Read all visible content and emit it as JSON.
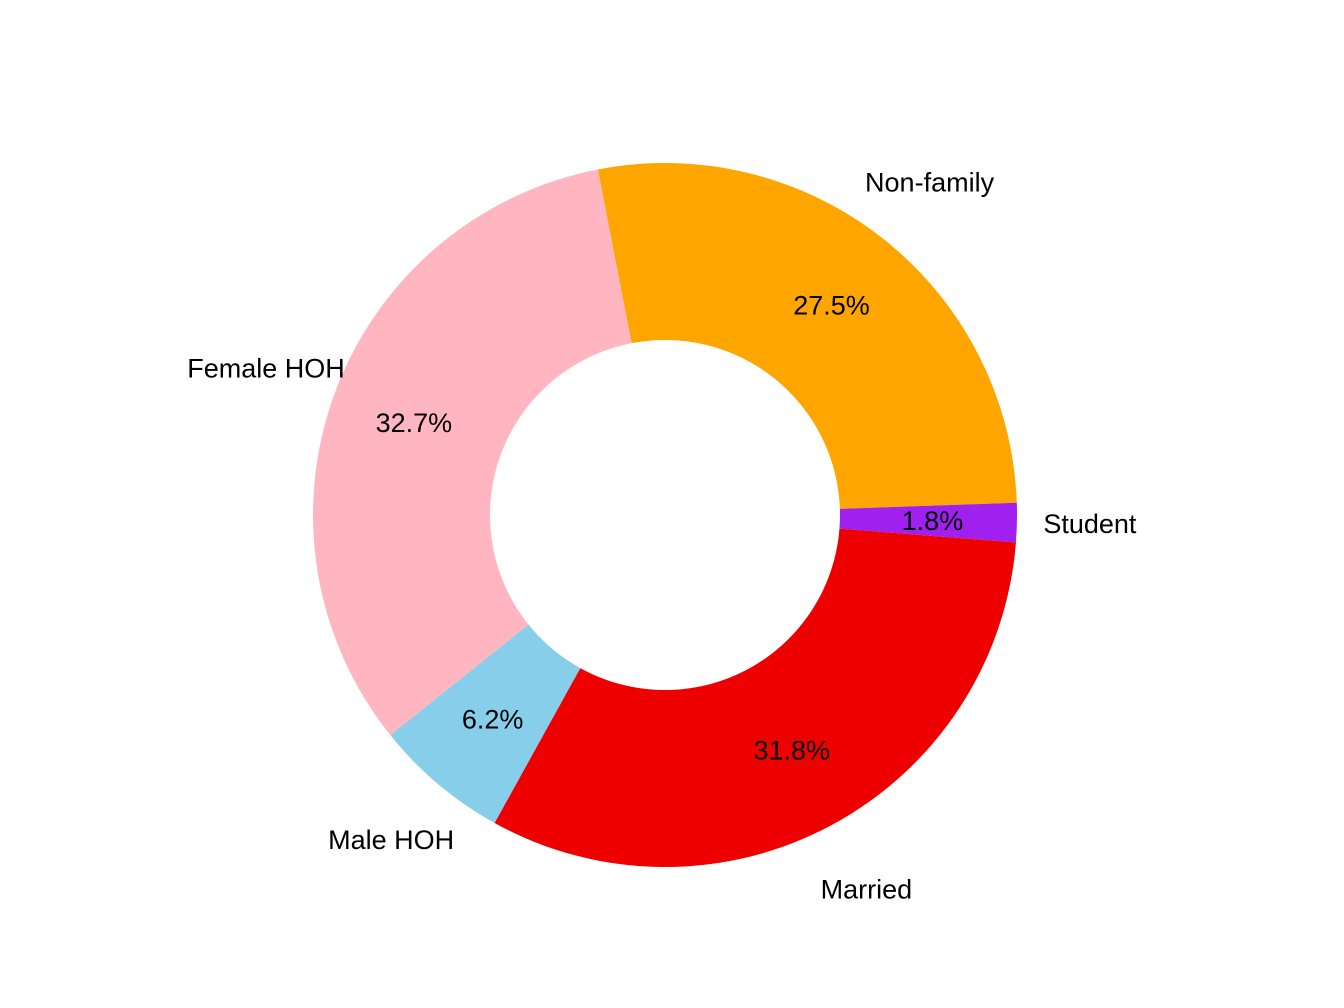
{
  "chart_data": {
    "type": "pie",
    "donut": true,
    "title": "",
    "slices": [
      {
        "label": "Non-family",
        "value": 27.5,
        "percent_label": "27.5%",
        "color": "#FFA500"
      },
      {
        "label": "Student",
        "value": 1.8,
        "percent_label": "1.8%",
        "color": "#A020F0"
      },
      {
        "label": "Married",
        "value": 31.8,
        "percent_label": "31.8%",
        "color": "#EE0000"
      },
      {
        "label": "Male HOH",
        "value": 6.2,
        "percent_label": "6.2%",
        "color": "#87CEEB"
      },
      {
        "label": "Female HOH",
        "value": 32.7,
        "percent_label": "32.7%",
        "color": "#FFB6C1"
      }
    ],
    "legend": "none"
  }
}
